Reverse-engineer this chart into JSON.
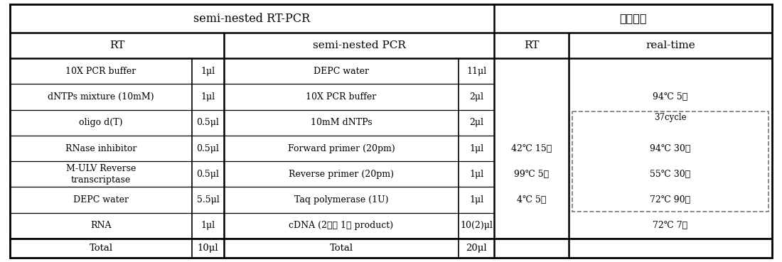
{
  "title_left": "semi-nested RT-PCR",
  "title_right": "반응조건",
  "header": [
    "RT",
    "semi-nested PCR",
    "RT",
    "real-time"
  ],
  "rt_reagents": [
    "10X PCR buffer",
    "dNTPs mixture (10mM)",
    "oligo d(T)",
    "RNase inhibitor",
    "M-ULV Reverse\ntranscriptase",
    "DEPC water",
    "RNA"
  ],
  "rt_vols": [
    "1μl",
    "1μl",
    "0.5μl",
    "0.5μl",
    "0.5μl",
    "5.5μl",
    "1μl"
  ],
  "pcr_reagents": [
    "DEPC water",
    "10X PCR buffer",
    "10mM dNTPs",
    "Forward primer (20pm)",
    "Reverse primer (20pm)",
    "Taq polymerase (1U)",
    "cDNA (2차는 1차 product)"
  ],
  "pcr_vols": [
    "11μl",
    "2μl",
    "2μl",
    "1μl",
    "1μl",
    "1μl",
    "10(2)μl"
  ],
  "rt_conds": [
    "42℃ 15분",
    "99℃ 5분",
    "4℃ 5분"
  ],
  "rt_cond_rows": [
    3,
    4,
    5
  ],
  "pre_cycle": "94℃ 5분",
  "pre_cycle_row": 1,
  "cycle_header": "37cycle",
  "cycle_items": [
    "94℃ 30초",
    "55℃ 30초",
    "72℃ 90초"
  ],
  "post_cycle": "72℃ 7분",
  "total_rt": "10μl",
  "total_pcr": "20μl",
  "bg": "#ffffff",
  "fg": "#000000",
  "dash_color": "#777777"
}
